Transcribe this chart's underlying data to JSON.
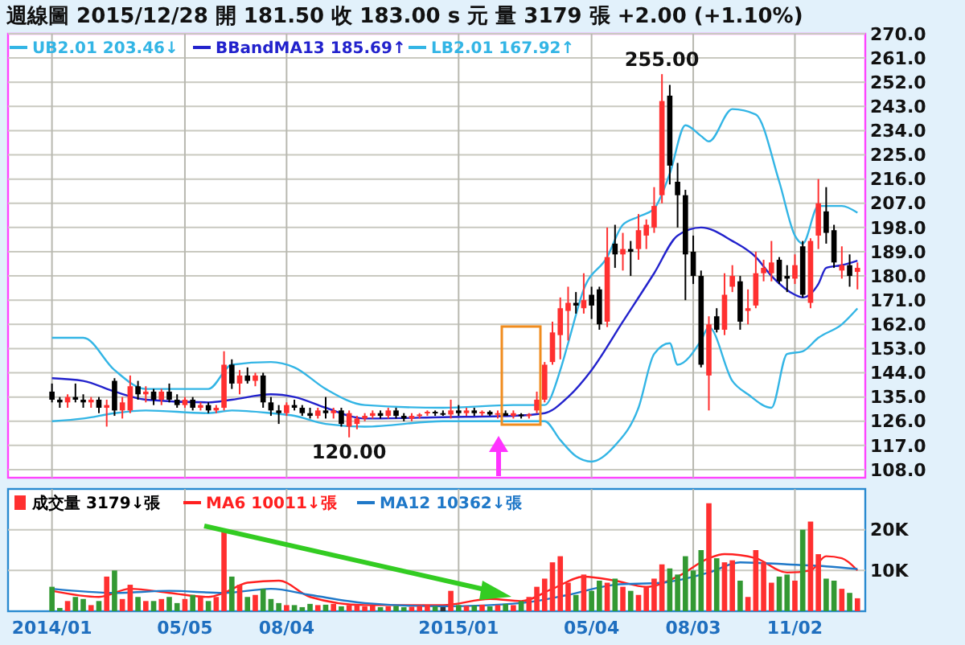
{
  "chart_data": [
    {
      "type": "candlestick",
      "title": "週線圖 2015/12/28 開 181.50 收 183.00 s 元 量 3179 張 +2.00 (+1.10%)",
      "x": [
        "2014-01-06",
        "2014-01-13",
        "2014-01-20",
        "2014-01-27",
        "2014-02-03",
        "2014-02-10",
        "2014-02-17",
        "2014-02-24",
        "2014-03-03",
        "2014-03-10",
        "2014-03-17",
        "2014-03-24",
        "2014-03-31",
        "2014-04-07",
        "2014-04-14",
        "2014-04-21",
        "2014-04-28",
        "2014-05-05",
        "2014-05-12",
        "2014-05-19",
        "2014-05-26",
        "2014-06-02",
        "2014-06-09",
        "2014-06-16",
        "2014-06-23",
        "2014-06-30",
        "2014-07-07",
        "2014-07-14",
        "2014-07-21",
        "2014-07-28",
        "2014-08-04",
        "2014-08-11",
        "2014-08-18",
        "2014-08-25",
        "2014-09-01",
        "2014-09-08",
        "2014-09-15",
        "2014-09-22",
        "2014-09-29",
        "2014-10-06",
        "2014-10-13",
        "2014-10-20",
        "2014-10-27",
        "2014-11-03",
        "2014-11-10",
        "2014-11-17",
        "2014-11-24",
        "2014-12-01",
        "2014-12-08",
        "2014-12-15",
        "2014-12-22",
        "2014-12-29",
        "2015-01-05",
        "2015-01-12",
        "2015-01-19",
        "2015-01-26",
        "2015-02-02",
        "2015-02-09",
        "2015-02-16",
        "2015-02-23",
        "2015-03-02",
        "2015-03-09",
        "2015-03-16",
        "2015-03-23",
        "2015-03-30",
        "2015-04-06",
        "2015-04-13",
        "2015-04-20",
        "2015-04-27",
        "2015-05-04",
        "2015-05-11",
        "2015-05-18",
        "2015-05-25",
        "2015-06-01",
        "2015-06-08",
        "2015-06-15",
        "2015-06-22",
        "2015-06-29",
        "2015-07-06",
        "2015-07-13",
        "2015-07-20",
        "2015-07-27",
        "2015-08-03",
        "2015-08-10",
        "2015-08-17",
        "2015-08-24",
        "2015-08-31",
        "2015-09-07",
        "2015-09-14",
        "2015-09-21",
        "2015-09-28",
        "2015-10-05",
        "2015-10-12",
        "2015-10-19",
        "2015-10-26",
        "2015-11-02",
        "2015-11-09",
        "2015-11-16",
        "2015-11-23",
        "2015-11-30",
        "2015-12-07",
        "2015-12-14",
        "2015-12-21",
        "2015-12-28"
      ],
      "ohlc": [
        [
          137,
          140,
          133,
          134
        ],
        [
          134,
          135,
          131,
          133
        ],
        [
          133,
          136,
          131,
          135
        ],
        [
          135,
          140,
          133,
          134
        ],
        [
          134,
          136,
          131,
          133
        ],
        [
          133,
          135,
          131,
          134
        ],
        [
          134,
          135,
          129,
          131
        ],
        [
          131,
          134,
          124,
          132
        ],
        [
          141,
          142,
          128,
          130
        ],
        [
          130,
          135,
          127,
          133
        ],
        [
          130,
          143,
          129,
          139
        ],
        [
          139,
          141,
          134,
          136
        ],
        [
          136,
          139,
          133,
          137
        ],
        [
          137,
          138,
          132,
          134
        ],
        [
          134,
          138,
          132,
          137
        ],
        [
          137,
          140,
          133,
          134
        ],
        [
          134,
          136,
          131,
          132
        ],
        [
          132,
          135,
          131,
          134
        ],
        [
          134,
          135,
          130,
          131
        ],
        [
          131,
          133,
          130,
          132
        ],
        [
          132,
          133,
          129,
          130
        ],
        [
          130,
          132,
          129,
          131
        ],
        [
          131,
          152,
          130,
          147
        ],
        [
          147,
          149,
          138,
          140
        ],
        [
          140,
          145,
          136,
          143
        ],
        [
          143,
          146,
          140,
          141
        ],
        [
          141,
          144,
          139,
          143
        ],
        [
          143,
          144,
          131,
          133
        ],
        [
          133,
          135,
          128,
          130
        ],
        [
          130,
          132,
          125,
          129
        ],
        [
          129,
          133,
          128,
          132
        ],
        [
          132,
          134,
          130,
          131
        ],
        [
          131,
          132,
          128,
          129
        ],
        [
          129,
          131,
          127,
          128
        ],
        [
          128,
          131,
          127,
          130
        ],
        [
          130,
          135,
          127,
          129
        ],
        [
          129,
          131,
          127,
          130
        ],
        [
          130,
          131,
          124,
          125
        ],
        [
          124,
          130,
          120,
          129
        ],
        [
          125,
          128,
          123,
          127
        ],
        [
          127,
          129,
          126,
          128
        ],
        [
          128,
          130,
          127,
          129
        ],
        [
          129,
          130,
          127,
          128
        ],
        [
          128,
          131,
          127,
          130
        ],
        [
          130,
          131,
          127,
          128
        ],
        [
          128,
          129,
          126,
          127
        ],
        [
          127,
          129,
          126,
          128
        ],
        [
          128,
          129,
          127,
          128.5
        ],
        [
          129,
          130,
          128,
          129.5
        ],
        [
          129.5,
          130,
          128,
          129
        ],
        [
          129,
          130,
          128,
          129
        ],
        [
          128.5,
          134,
          127,
          130
        ],
        [
          130,
          132,
          128,
          129
        ],
        [
          129,
          131,
          128,
          130
        ],
        [
          130,
          131,
          128,
          129
        ],
        [
          129,
          130,
          128,
          129.5
        ],
        [
          129.5,
          130,
          128,
          128.5
        ],
        [
          128.5,
          130,
          127,
          129
        ],
        [
          129,
          130,
          128,
          128
        ],
        [
          128,
          130,
          127,
          129
        ],
        [
          128.5,
          129,
          127,
          128
        ],
        [
          128,
          129,
          127,
          128.5
        ],
        [
          130,
          137,
          129,
          134
        ],
        [
          134,
          148,
          133,
          147
        ],
        [
          148,
          163,
          147,
          159
        ],
        [
          158,
          172,
          149,
          168
        ],
        [
          167,
          176,
          156,
          170
        ],
        [
          170,
          174,
          166,
          169
        ],
        [
          168,
          181,
          166,
          171
        ],
        [
          173,
          176,
          164,
          169
        ],
        [
          175,
          176,
          160,
          162
        ],
        [
          163,
          198,
          161,
          187
        ],
        [
          192,
          199,
          183,
          188
        ],
        [
          188,
          196,
          182,
          190
        ],
        [
          190,
          193,
          180,
          189
        ],
        [
          190,
          203,
          186,
          197
        ],
        [
          195,
          201,
          190,
          199
        ],
        [
          198,
          213,
          196,
          206
        ],
        [
          210,
          255,
          207,
          245
        ],
        [
          247,
          251,
          214,
          221
        ],
        [
          215,
          222,
          198,
          210
        ],
        [
          210,
          212,
          171,
          188
        ],
        [
          189,
          195,
          177,
          180
        ],
        [
          180,
          182,
          146,
          147
        ],
        [
          143,
          165,
          130,
          162
        ],
        [
          165,
          168,
          159,
          160
        ],
        [
          160,
          181,
          158,
          173
        ],
        [
          176,
          184,
          174,
          180
        ],
        [
          178,
          180,
          160,
          163
        ],
        [
          167,
          175,
          162,
          168
        ],
        [
          169,
          189,
          168,
          181
        ],
        [
          181,
          186,
          178,
          183
        ],
        [
          181,
          193,
          178,
          185
        ],
        [
          186,
          187,
          177,
          178
        ],
        [
          180,
          184,
          174,
          179
        ],
        [
          179,
          188,
          177,
          184
        ],
        [
          191,
          193,
          172,
          173
        ],
        [
          170,
          194,
          168,
          193
        ],
        [
          195,
          216,
          190,
          207
        ],
        [
          204,
          213,
          192,
          196
        ],
        [
          197,
          199,
          183,
          185
        ],
        [
          182,
          191,
          179,
          184
        ],
        [
          184,
          188,
          176,
          180
        ],
        [
          181.5,
          185,
          175,
          183
        ]
      ],
      "colors": [
        "#000000",
        "#000000",
        "#ff3030",
        "#000000",
        "#000000",
        "#ff3030",
        "#000000",
        "#ff3030",
        "#000000",
        "#ff3030",
        "#ff3030",
        "#000000",
        "#ff3030",
        "#000000",
        "#ff3030",
        "#000000",
        "#000000",
        "#ff3030",
        "#000000",
        "#ff3030",
        "#000000",
        "#ff3030",
        "#ff3030",
        "#000000",
        "#ff3030",
        "#000000",
        "#ff3030",
        "#000000",
        "#000000",
        "#000000",
        "#ff3030",
        "#000000",
        "#000000",
        "#000000",
        "#ff3030",
        "#000000",
        "#ff3030",
        "#000000",
        "#ff3030",
        "#ff3030",
        "#ff3030",
        "#ff3030",
        "#000000",
        "#ff3030",
        "#000000",
        "#000000",
        "#ff3030",
        "#ff3030",
        "#ff3030",
        "#000000",
        "#000000",
        "#ff3030",
        "#000000",
        "#ff3030",
        "#000000",
        "#ff3030",
        "#000000",
        "#ff3030",
        "#000000",
        "#ff3030",
        "#000000",
        "#ff3030",
        "#ff3030",
        "#ff3030",
        "#ff3030",
        "#ff3030",
        "#ff3030",
        "#000000",
        "#ff3030",
        "#000000",
        "#000000",
        "#ff3030",
        "#000000",
        "#ff3030",
        "#000000",
        "#ff3030",
        "#ff3030",
        "#ff3030",
        "#ff3030",
        "#000000",
        "#000000",
        "#000000",
        "#000000",
        "#000000",
        "#ff3030",
        "#000000",
        "#ff3030",
        "#ff3030",
        "#000000",
        "#ff3030",
        "#ff3030",
        "#ff3030",
        "#ff3030",
        "#000000",
        "#000000",
        "#ff3030",
        "#000000",
        "#ff3030",
        "#ff3030",
        "#000000",
        "#000000",
        "#ff3030",
        "#000000",
        "#ff3030"
      ],
      "series": [
        {
          "name": "UB2.01 203.46↓",
          "type": "line",
          "color": "#33b5e5",
          "x": [
            "2014-01-06",
            "2014-02-03",
            "2014-03-03",
            "2014-03-31",
            "2014-05-26",
            "2014-06-16",
            "2014-07-21",
            "2014-08-11",
            "2014-09-08",
            "2014-10-13",
            "2014-12-22",
            "2015-02-23",
            "2015-03-23",
            "2015-04-06",
            "2015-04-13",
            "2015-04-27",
            "2015-05-18",
            "2015-06-01",
            "2015-06-15",
            "2015-06-29",
            "2015-07-13",
            "2015-07-27",
            "2015-08-10",
            "2015-08-17",
            "2015-09-07",
            "2015-09-28",
            "2015-10-19",
            "2015-11-02",
            "2015-11-09",
            "2015-11-23",
            "2015-12-14",
            "2015-12-28"
          ],
          "values": [
            157,
            157,
            145,
            138,
            138,
            147,
            148,
            146,
            138,
            132,
            131,
            132,
            132,
            145,
            155,
            175,
            187,
            199,
            202,
            205,
            218,
            236,
            232,
            230,
            242,
            240,
            215,
            195,
            192,
            206,
            206,
            203.46
          ]
        },
        {
          "name": "BBandMA13 185.69↑",
          "type": "line",
          "color": "#2222cc",
          "x": [
            "2014-01-06",
            "2014-02-03",
            "2014-03-03",
            "2014-03-31",
            "2014-05-26",
            "2014-06-16",
            "2014-07-21",
            "2014-08-11",
            "2014-09-08",
            "2014-10-13",
            "2014-12-22",
            "2015-02-23",
            "2015-03-23",
            "2015-04-13",
            "2015-05-04",
            "2015-06-01",
            "2015-06-29",
            "2015-07-20",
            "2015-08-10",
            "2015-09-07",
            "2015-09-28",
            "2015-10-12",
            "2015-11-02",
            "2015-11-09",
            "2015-11-23",
            "2015-11-30",
            "2015-12-14",
            "2015-12-28"
          ],
          "values": [
            142,
            141,
            137,
            134,
            133,
            134,
            136,
            135,
            131,
            127,
            127.5,
            128,
            129,
            135,
            145,
            163,
            181,
            195,
            198,
            193,
            187,
            180,
            173,
            172,
            177,
            183,
            184,
            185.69
          ]
        },
        {
          "name": "LB2.01 167.92↑",
          "type": "line",
          "color": "#33b5e5",
          "x": [
            "2014-01-06",
            "2014-02-03",
            "2014-03-03",
            "2014-03-31",
            "2014-05-26",
            "2014-06-16",
            "2014-07-21",
            "2014-08-11",
            "2014-09-08",
            "2014-10-13",
            "2014-12-22",
            "2015-02-23",
            "2015-03-23",
            "2015-04-06",
            "2015-04-20",
            "2015-05-04",
            "2015-05-25",
            "2015-06-15",
            "2015-06-29",
            "2015-07-13",
            "2015-07-20",
            "2015-08-10",
            "2015-08-17",
            "2015-09-07",
            "2015-09-21",
            "2015-10-12",
            "2015-10-26",
            "2015-11-09",
            "2015-11-23",
            "2015-12-14",
            "2015-12-28"
          ],
          "values": [
            126,
            127,
            129,
            130,
            129,
            130,
            129,
            128,
            125,
            124,
            126,
            126,
            126,
            119,
            113,
            111,
            117,
            131,
            151,
            155,
            147,
            156,
            161,
            141,
            136,
            131,
            151,
            152,
            157,
            162,
            167.92
          ]
        }
      ],
      "xlim": [
        "2013-12-02",
        "2016-01-04"
      ],
      "xticks": [
        {
          "value": "2014-01-06",
          "label": null
        },
        {
          "value": "2014-05-05",
          "label": null
        },
        {
          "value": "2014-08-04",
          "label": null
        },
        {
          "value": "2015-01-05",
          "label": null
        },
        {
          "value": "2015-05-04",
          "label": null
        },
        {
          "value": "2015-08-03",
          "label": null
        },
        {
          "value": "2015-11-02",
          "label": null
        }
      ],
      "ylim": [
        105,
        270
      ],
      "yticks": [
        {
          "value": 108,
          "label": "108.0"
        },
        {
          "value": 117,
          "label": "117.0"
        },
        {
          "value": 126,
          "label": "126.0"
        },
        {
          "value": 135,
          "label": "135.0"
        },
        {
          "value": 144,
          "label": "144.0"
        },
        {
          "value": 153,
          "label": "153.0"
        },
        {
          "value": 162,
          "label": "162.0"
        },
        {
          "value": 171,
          "label": "171.0"
        },
        {
          "value": 180,
          "label": "180.0"
        },
        {
          "value": 189,
          "label": "189.0"
        },
        {
          "value": 198,
          "label": "198.0"
        },
        {
          "value": 207,
          "label": "207.0"
        },
        {
          "value": 216,
          "label": "216.0"
        },
        {
          "value": 225,
          "label": "225.0"
        },
        {
          "value": 234,
          "label": "234.0"
        },
        {
          "value": 243,
          "label": "243.0"
        },
        {
          "value": 252,
          "label": "252.0"
        },
        {
          "value": 261,
          "label": "261.0"
        },
        {
          "value": 270,
          "label": "270.0"
        }
      ],
      "tick_labels": "y",
      "grid": true,
      "legend": "top left",
      "annotations": [
        {
          "text": "255.00",
          "x": "2015-07-06",
          "y": 255
        },
        {
          "text": "120.00",
          "x": "2014-09-29",
          "y": 120
        }
      ]
    },
    {
      "type": "bar",
      "x": [
        "2014-01-06",
        "2014-01-13",
        "2014-01-20",
        "2014-01-27",
        "2014-02-03",
        "2014-02-10",
        "2014-02-17",
        "2014-02-24",
        "2014-03-03",
        "2014-03-10",
        "2014-03-17",
        "2014-03-24",
        "2014-03-31",
        "2014-04-07",
        "2014-04-14",
        "2014-04-21",
        "2014-04-28",
        "2014-05-05",
        "2014-05-12",
        "2014-05-19",
        "2014-05-26",
        "2014-06-02",
        "2014-06-09",
        "2014-06-16",
        "2014-06-23",
        "2014-06-30",
        "2014-07-07",
        "2014-07-14",
        "2014-07-21",
        "2014-07-28",
        "2014-08-04",
        "2014-08-11",
        "2014-08-18",
        "2014-08-25",
        "2014-09-01",
        "2014-09-08",
        "2014-09-15",
        "2014-09-22",
        "2014-09-29",
        "2014-10-06",
        "2014-10-13",
        "2014-10-20",
        "2014-10-27",
        "2014-11-03",
        "2014-11-10",
        "2014-11-17",
        "2014-11-24",
        "2014-12-01",
        "2014-12-08",
        "2014-12-15",
        "2014-12-22",
        "2014-12-29",
        "2015-01-05",
        "2015-01-12",
        "2015-01-19",
        "2015-01-26",
        "2015-02-02",
        "2015-02-09",
        "2015-02-16",
        "2015-02-23",
        "2015-03-02",
        "2015-03-09",
        "2015-03-16",
        "2015-03-23",
        "2015-03-30",
        "2015-04-06",
        "2015-04-13",
        "2015-04-20",
        "2015-04-27",
        "2015-05-04",
        "2015-05-11",
        "2015-05-18",
        "2015-05-25",
        "2015-06-01",
        "2015-06-08",
        "2015-06-15",
        "2015-06-22",
        "2015-06-29",
        "2015-07-06",
        "2015-07-13",
        "2015-07-20",
        "2015-07-27",
        "2015-08-03",
        "2015-08-10",
        "2015-08-17",
        "2015-08-24",
        "2015-08-31",
        "2015-09-07",
        "2015-09-14",
        "2015-09-21",
        "2015-09-28",
        "2015-10-05",
        "2015-10-12",
        "2015-10-19",
        "2015-10-26",
        "2015-11-02",
        "2015-11-09",
        "2015-11-16",
        "2015-11-23",
        "2015-11-30",
        "2015-12-07",
        "2015-12-14",
        "2015-12-21",
        "2015-12-28"
      ],
      "series": [
        {
          "name": "成交量 3179↓張",
          "color": "#000000",
          "colors": [
            "#339933",
            "#339933",
            "#ff3030",
            "#339933",
            "#339933",
            "#ff3030",
            "#339933",
            "#ff3030",
            "#339933",
            "#ff3030",
            "#ff3030",
            "#339933",
            "#ff3030",
            "#339933",
            "#ff3030",
            "#339933",
            "#339933",
            "#ff3030",
            "#339933",
            "#ff3030",
            "#339933",
            "#ff3030",
            "#ff3030",
            "#339933",
            "#ff3030",
            "#339933",
            "#ff3030",
            "#339933",
            "#339933",
            "#339933",
            "#ff3030",
            "#339933",
            "#339933",
            "#339933",
            "#ff3030",
            "#339933",
            "#ff3030",
            "#339933",
            "#ff3030",
            "#ff3030",
            "#ff3030",
            "#ff3030",
            "#339933",
            "#ff3030",
            "#339933",
            "#339933",
            "#ff3030",
            "#ff3030",
            "#ff3030",
            "#339933",
            "#333333",
            "#ff3030",
            "#339933",
            "#ff3030",
            "#339933",
            "#ff3030",
            "#339933",
            "#ff3030",
            "#339933",
            "#ff3030",
            "#339933",
            "#ff3030",
            "#ff3030",
            "#ff3030",
            "#ff3030",
            "#ff3030",
            "#ff3030",
            "#339933",
            "#ff3030",
            "#339933",
            "#339933",
            "#ff3030",
            "#339933",
            "#ff3030",
            "#339933",
            "#ff3030",
            "#ff3030",
            "#ff3030",
            "#ff3030",
            "#339933",
            "#339933",
            "#339933",
            "#339933",
            "#339933",
            "#ff3030",
            "#339933",
            "#ff3030",
            "#ff3030",
            "#339933",
            "#ff3030",
            "#ff3030",
            "#ff3030",
            "#ff3030",
            "#339933",
            "#339933",
            "#ff3030",
            "#339933",
            "#ff3030",
            "#ff3030",
            "#339933",
            "#339933",
            "#ff3030",
            "#339933",
            "#ff3030"
          ],
          "values": [
            6000,
            800,
            2500,
            3500,
            3000,
            1500,
            2500,
            8500,
            10000,
            3000,
            6500,
            3500,
            2500,
            2500,
            3000,
            3500,
            2000,
            3000,
            4000,
            3500,
            2500,
            3500,
            20000,
            8500,
            6500,
            3500,
            4000,
            5500,
            3000,
            2000,
            1500,
            1500,
            1000,
            1800,
            1500,
            1600,
            1800,
            1200,
            1500,
            1600,
            1200,
            1400,
            1000,
            1200,
            1300,
            1000,
            1100,
            1300,
            1500,
            1200,
            1000,
            5000,
            1500,
            1300,
            1400,
            1600,
            1200,
            1500,
            1800,
            1500,
            2500,
            3500,
            6000,
            8000,
            12000,
            13500,
            7000,
            4000,
            9000,
            5000,
            7500,
            7000,
            8000,
            6000,
            5000,
            4000,
            6000,
            8000,
            11500,
            10500,
            9000,
            13500,
            10000,
            15000,
            26500,
            13000,
            12000,
            12500,
            7500,
            3500,
            15000,
            12000,
            7000,
            8500,
            9000,
            7500,
            20000,
            22000,
            14000,
            8000,
            7500,
            5500,
            4500,
            3179
          ]
        },
        {
          "name": "MA6 10011↓張",
          "type": "line",
          "color": "#ff2020",
          "x": [
            "2014-01-06",
            "2014-02-17",
            "2014-03-17",
            "2014-04-21",
            "2014-05-26",
            "2014-06-09",
            "2014-06-30",
            "2014-07-28",
            "2014-08-25",
            "2014-10-13",
            "2014-12-22",
            "2015-02-02",
            "2015-03-02",
            "2015-03-30",
            "2015-04-27",
            "2015-05-25",
            "2015-06-22",
            "2015-07-20",
            "2015-08-17",
            "2015-08-31",
            "2015-09-28",
            "2015-10-26",
            "2015-11-16",
            "2015-11-30",
            "2015-12-14",
            "2015-12-28"
          ],
          "values": [
            5000,
            3500,
            5500,
            4500,
            3500,
            4500,
            7000,
            7500,
            3500,
            1500,
            1500,
            3000,
            2500,
            5500,
            8500,
            7500,
            6000,
            8500,
            13000,
            14000,
            13000,
            9500,
            10000,
            13500,
            13000,
            10011
          ]
        },
        {
          "name": "MA12 10362↓張",
          "type": "line",
          "color": "#1f78c8",
          "x": [
            "2014-01-06",
            "2014-03-03",
            "2014-04-21",
            "2014-06-09",
            "2014-07-21",
            "2014-08-25",
            "2014-10-13",
            "2014-12-22",
            "2015-03-02",
            "2015-04-13",
            "2015-05-25",
            "2015-07-06",
            "2015-08-17",
            "2015-09-14",
            "2015-10-26",
            "2015-11-30",
            "2015-12-28"
          ],
          "values": [
            5500,
            4500,
            5000,
            4500,
            5500,
            4000,
            2000,
            1200,
            2000,
            4000,
            6500,
            7000,
            9500,
            12000,
            11500,
            11000,
            10362
          ]
        }
      ],
      "xlim": [
        "2013-12-02",
        "2016-01-04"
      ],
      "xticks": [
        {
          "value": "2014-01-06",
          "label": "2014/01"
        },
        {
          "value": "2014-05-05",
          "label": "05/05"
        },
        {
          "value": "2014-08-04",
          "label": "08/04"
        },
        {
          "value": "2015-01-05",
          "label": "2015/01"
        },
        {
          "value": "2015-05-04",
          "label": "05/04"
        },
        {
          "value": "2015-08-03",
          "label": "08/03"
        },
        {
          "value": "2015-11-02",
          "label": "11/02"
        }
      ],
      "ylim": [
        0,
        30000
      ],
      "yticks": [
        {
          "value": 10000,
          "label": "10K"
        },
        {
          "value": 20000,
          "label": "20K"
        }
      ],
      "grid": true,
      "legend": "top left"
    }
  ]
}
